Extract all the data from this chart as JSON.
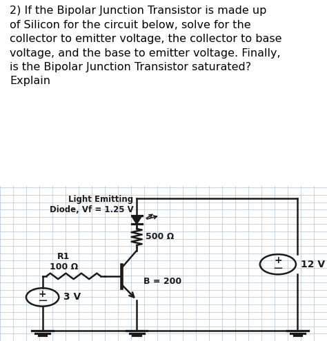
{
  "title_text": "2) If the Bipolar Junction Transistor is made up\nof Silicon for the circuit below, solve for the\ncollector to emitter voltage, the collector to base\nvoltage, and the base to emitter voltage. Finally,\nis the Bipolar Junction Transistor saturated?\nExplain",
  "bg_color": "#c8d8e4",
  "text_color": "#000000",
  "grid_color": "#b0c4d4",
  "R1_label": "R1\n100 Ω",
  "R2_label": "500 Ω",
  "V1_label": "3 V",
  "V2_label": "12 V",
  "LED_label": "Light Emitting\nDiode, Vf = 1.25 V",
  "B_label": "B = 200",
  "title_fontsize": 11.5,
  "label_fontsize": 9
}
